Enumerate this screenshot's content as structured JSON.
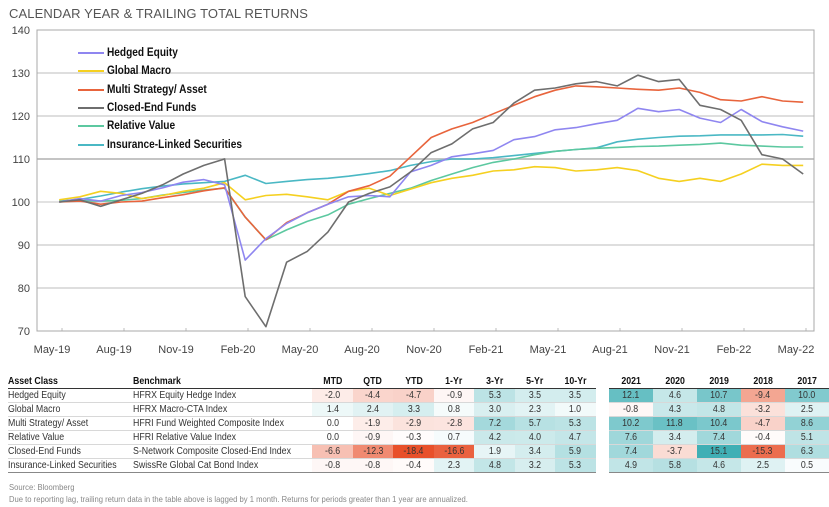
{
  "title": "CALENDAR YEAR & TRAILING TOTAL RETURNS",
  "chart_data": {
    "type": "line",
    "title": "CALENDAR YEAR & TRAILING TOTAL RETURNS",
    "xlabel": "",
    "ylabel": "",
    "ylim": [
      70,
      140
    ],
    "yticks": [
      70,
      80,
      90,
      100,
      110,
      120,
      130,
      140
    ],
    "x_tick_labels": [
      "May-19",
      "Aug-19",
      "Nov-19",
      "Feb-20",
      "May-20",
      "Aug-20",
      "Nov-20",
      "Feb-21",
      "May-21",
      "Aug-21",
      "Nov-21",
      "Feb-22",
      "May-22"
    ],
    "grid": true,
    "legend_position": "top-left",
    "x": [
      "Jun-19",
      "Jul-19",
      "Aug-19",
      "Sep-19",
      "Oct-19",
      "Nov-19",
      "Dec-19",
      "Jan-20",
      "Feb-20",
      "Mar-20",
      "Apr-20",
      "May-20",
      "Jun-20",
      "Jul-20",
      "Aug-20",
      "Sep-20",
      "Oct-20",
      "Nov-20",
      "Dec-20",
      "Jan-21",
      "Feb-21",
      "Mar-21",
      "Apr-21",
      "May-21",
      "Jun-21",
      "Jul-21",
      "Aug-21",
      "Sep-21",
      "Oct-21",
      "Nov-21",
      "Dec-21",
      "Jan-22",
      "Feb-22",
      "Mar-22",
      "Apr-22",
      "May-22",
      "Jun-22"
    ],
    "series": [
      {
        "name": "Hedged Equity",
        "color": "#8f86f0",
        "values": [
          100,
          100.8,
          100.2,
          101.5,
          102.2,
          103.3,
          104.6,
          105.2,
          104.0,
          86.5,
          91.5,
          95,
          97.5,
          99.5,
          101.2,
          101.5,
          101.2,
          107,
          108.5,
          110.5,
          111.2,
          112,
          114.5,
          115.2,
          116.8,
          117.3,
          118.2,
          119,
          121.8,
          121,
          121.5,
          119.5,
          118.5,
          121.5,
          118.7,
          117.5,
          116.5
        ]
      },
      {
        "name": "Global  Macro",
        "color": "#f5d020",
        "values": [
          100.5,
          101.2,
          102.5,
          102,
          100.8,
          101.5,
          102.5,
          103.2,
          104.5,
          100.5,
          101.5,
          101.8,
          101.2,
          100.5,
          102.5,
          103.2,
          101.5,
          103,
          104.5,
          105.5,
          106.2,
          107.2,
          107.5,
          108.2,
          108,
          107.2,
          107.5,
          108,
          107.3,
          105.5,
          104.8,
          105.5,
          104.8,
          106.5,
          108.8,
          108.5,
          108.5
        ]
      },
      {
        "name": "Multi Strategy/ Asset",
        "color": "#e8643c",
        "values": [
          100,
          100.2,
          99.5,
          100,
          100.2,
          101,
          101.7,
          102.6,
          103.3,
          96.5,
          91.2,
          95.2,
          97.5,
          99.5,
          102.5,
          103.8,
          106,
          110.5,
          115,
          117,
          118.5,
          120.5,
          122.5,
          124.5,
          126,
          127,
          126.8,
          126.5,
          126.2,
          126,
          126.5,
          125.5,
          123.8,
          123.5,
          124.5,
          123.5,
          123.2
        ]
      },
      {
        "name": "Closed-End Funds",
        "color": "#6e6e6e",
        "values": [
          100,
          100.5,
          99,
          100.5,
          102,
          104,
          106.5,
          108.5,
          110,
          78,
          71,
          86,
          88.5,
          93,
          100,
          102,
          103.5,
          107,
          111.5,
          113.5,
          117,
          118.5,
          123,
          126,
          126.5,
          127.5,
          128,
          127,
          129.5,
          128,
          128.5,
          122.5,
          121.5,
          119,
          111,
          110,
          106.5
        ]
      },
      {
        "name": "Relative Value",
        "color": "#5cc8a0",
        "values": [
          100,
          100.3,
          100.2,
          100.4,
          100.8,
          101.6,
          102.2,
          102.8,
          103.2,
          96.5,
          91.2,
          93.5,
          95.5,
          97,
          99.5,
          100.8,
          102,
          103.2,
          105,
          106.5,
          108,
          109.2,
          110,
          111,
          111.8,
          112.2,
          112.5,
          112.7,
          112.9,
          113,
          113.2,
          113.4,
          113.7,
          113.2,
          113,
          112.8,
          112.8
        ]
      },
      {
        "name": "Insurance-Linked Securities",
        "color": "#4ab8c4",
        "values": [
          100.2,
          100.6,
          101.4,
          102.3,
          103.1,
          103.7,
          104.2,
          104.5,
          104.8,
          106.2,
          104.3,
          104.8,
          105.2,
          105.5,
          106,
          106.6,
          107.3,
          108.5,
          109.4,
          110,
          110,
          110.3,
          110.8,
          111.3,
          111.8,
          112.2,
          112.6,
          114,
          114.6,
          115,
          115.3,
          115.4,
          115.6,
          115.6,
          115.6,
          115.7,
          115.3
        ]
      }
    ]
  },
  "table": {
    "headers": [
      "Asset Class",
      "Benchmark",
      "MTD",
      "QTD",
      "YTD",
      "1-Yr",
      "3-Yr",
      "5-Yr",
      "10-Yr",
      "2021",
      "2020",
      "2019",
      "2018",
      "2017"
    ],
    "rows": [
      {
        "asset_class": "Hedged Equity",
        "benchmark": "HFRX Equity Hedge Index",
        "values": [
          "-2.0",
          "-4.4",
          "-4.7",
          "-0.9",
          "5.3",
          "3.5",
          "3.5",
          "12.1",
          "4.6",
          "10.7",
          "-9.4",
          "10.0"
        ]
      },
      {
        "asset_class": "Global  Macro",
        "benchmark": "HFRX Macro-CTA Index",
        "values": [
          "1.4",
          "2.4",
          "3.3",
          "0.8",
          "3.0",
          "2.3",
          "1.0",
          "-0.8",
          "4.3",
          "4.8",
          "-3.2",
          "2.5"
        ]
      },
      {
        "asset_class": "Multi Strategy/ Asset",
        "benchmark": "HFRI Fund Weighted Composite Index",
        "values": [
          "0.0",
          "-1.9",
          "-2.9",
          "-2.8",
          "7.2",
          "5.7",
          "5.3",
          "10.2",
          "11.8",
          "10.4",
          "-4.7",
          "8.6"
        ]
      },
      {
        "asset_class": "Relative Value",
        "benchmark": "HFRI Relative Value Index",
        "values": [
          "0.0",
          "-0.9",
          "-0.3",
          "0.7",
          "4.2",
          "4.0",
          "4.7",
          "7.6",
          "3.4",
          "7.4",
          "-0.4",
          "5.1"
        ]
      },
      {
        "asset_class": "Closed-End Funds",
        "benchmark": "S-Network Composite Closed-End Index",
        "values": [
          "-6.6",
          "-12.3",
          "-18.4",
          "-16.6",
          "1.9",
          "3.4",
          "5.9",
          "7.4",
          "-3.7",
          "15.1",
          "-15.3",
          "6.3"
        ]
      },
      {
        "asset_class": "Insurance-Linked Securities",
        "benchmark": "SwissRe Global Cat Bond Index",
        "values": [
          "-0.8",
          "-0.8",
          "-0.4",
          "2.3",
          "4.8",
          "3.2",
          "5.3",
          "4.9",
          "5.8",
          "4.6",
          "2.5",
          "0.5"
        ]
      }
    ]
  },
  "heat_colors": {
    "positive": "#2aa6ac",
    "negative": "#e8502a"
  },
  "footnotes": {
    "source": "Source: Bloomberg",
    "note": "Due to reporting lag, trailing return data in the table above is lagged by 1 month. Returns for periods greater than 1 year are annualized."
  }
}
